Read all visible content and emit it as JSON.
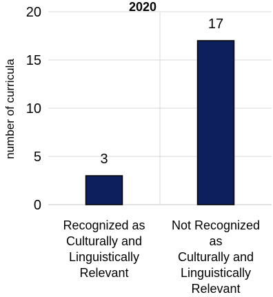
{
  "chart_data": {
    "type": "bar",
    "title": "2020",
    "ylabel": "number of curricula",
    "xlabel": "",
    "ylim": [
      0,
      20
    ],
    "yticks": [
      0,
      5,
      10,
      15,
      20
    ],
    "categories": [
      "Recognized as Culturally and Linguistically Relevant",
      "Not Recognized as Culturally and Linguistically Relevant"
    ],
    "category_label_lines": [
      [
        "Recognized as",
        "Culturally and",
        "Linguistically",
        "Relevant"
      ],
      [
        "Not Recognized",
        "as",
        "Culturally and",
        "Linguistically",
        "Relevant"
      ]
    ],
    "values": [
      3,
      17
    ],
    "data_labels": [
      "3",
      "17"
    ],
    "bar_color": "#0d1f5c",
    "bar_outline": "#000000",
    "gridlines": true,
    "grid_color": "#d9d9d9",
    "legend": "none"
  }
}
